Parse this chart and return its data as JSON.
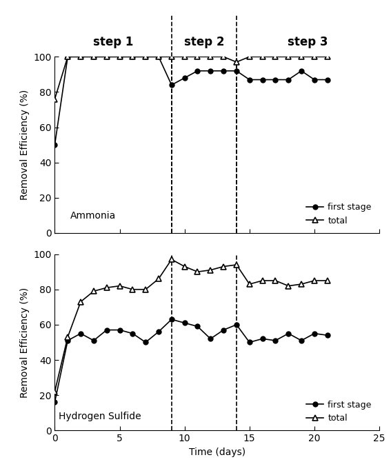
{
  "ammonia_first_stage_x": [
    0,
    1,
    2,
    3,
    4,
    5,
    6,
    7,
    8,
    9,
    10,
    11,
    12,
    13,
    14,
    15,
    16,
    17,
    18,
    19,
    20,
    21
  ],
  "ammonia_first_stage_y": [
    50,
    100,
    100,
    100,
    100,
    100,
    100,
    100,
    100,
    84,
    88,
    92,
    92,
    92,
    92,
    87,
    87,
    87,
    87,
    92,
    87,
    87
  ],
  "ammonia_total_x": [
    0,
    1,
    2,
    3,
    4,
    5,
    6,
    7,
    8,
    9,
    10,
    11,
    12,
    13,
    14,
    15,
    16,
    17,
    18,
    19,
    20,
    21
  ],
  "ammonia_total_y": [
    76,
    100,
    100,
    100,
    100,
    100,
    100,
    100,
    100,
    100,
    100,
    100,
    100,
    100,
    97,
    100,
    100,
    100,
    100,
    100,
    100,
    100
  ],
  "h2s_first_stage_x": [
    0,
    1,
    2,
    3,
    4,
    5,
    6,
    7,
    8,
    9,
    10,
    11,
    12,
    13,
    14,
    15,
    16,
    17,
    18,
    19,
    20,
    21
  ],
  "h2s_first_stage_y": [
    16,
    51,
    55,
    51,
    57,
    57,
    55,
    50,
    56,
    63,
    61,
    59,
    52,
    57,
    60,
    50,
    52,
    51,
    55,
    51,
    55,
    54
  ],
  "h2s_total_x": [
    0,
    1,
    2,
    3,
    4,
    5,
    6,
    7,
    8,
    9,
    10,
    11,
    12,
    13,
    14,
    15,
    16,
    17,
    18,
    19,
    20,
    21
  ],
  "h2s_total_y": [
    22,
    53,
    73,
    79,
    81,
    82,
    80,
    80,
    86,
    97,
    93,
    90,
    91,
    93,
    94,
    83,
    85,
    85,
    82,
    83,
    85,
    85
  ],
  "step1_x": 9,
  "step2_x": 14,
  "ylabel": "Removal Efficiency (%)",
  "xlabel": "Time (days)",
  "ammonia_label": "Ammonia",
  "h2s_label": "Hydrogen Sulfide",
  "step1_label": "step 1",
  "step2_label": "step 2",
  "step3_label": "step 3",
  "legend_first_stage": "first stage",
  "legend_total": "total",
  "xlim": [
    0,
    25
  ],
  "ylim": [
    0,
    100
  ],
  "xticks": [
    0,
    5,
    10,
    15,
    20,
    25
  ],
  "yticks": [
    0,
    20,
    40,
    60,
    80,
    100
  ]
}
